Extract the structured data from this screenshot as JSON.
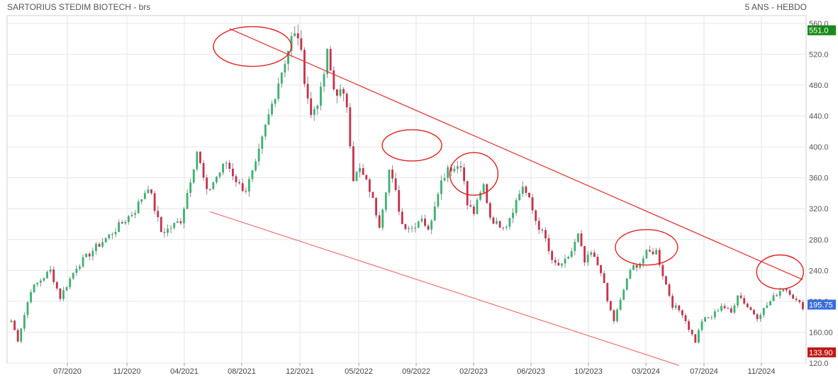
{
  "header": {
    "title": "SARTORIUS STEDIM BIOTECH - brs",
    "period": "5 ANS - HEBDO"
  },
  "chart_data": {
    "type": "candlestick",
    "ylim": [
      120,
      570
    ],
    "y_ticks": [
      "120.0",
      "160.00",
      "200.0",
      "240.0",
      "280.0",
      "320.0",
      "360.0",
      "400.0",
      "440.0",
      "480.0",
      "520.0",
      "560.0"
    ],
    "y_tick_values": [
      120,
      160,
      200,
      240,
      280,
      320,
      360,
      400,
      440,
      480,
      520,
      560
    ],
    "x_ticks": [
      "07/2020",
      "11/2020",
      "04/2021",
      "08/2021",
      "12/2021",
      "05/2022",
      "09/2022",
      "02/2023",
      "06/2023",
      "10/2023",
      "03/2024",
      "07/2024",
      "11/2024"
    ],
    "price_tags": [
      {
        "label": "551.0",
        "value": 551,
        "color": "#1a8a1a"
      },
      {
        "label": "195.75",
        "value": 195.75,
        "color": "#3b6fd8"
      },
      {
        "label": "133.90",
        "value": 133.9,
        "color": "#c01818"
      }
    ],
    "up_color": "#3cb371",
    "down_color": "#c8324e",
    "anchors": [
      [
        0,
        175
      ],
      [
        2,
        150
      ],
      [
        6,
        215
      ],
      [
        12,
        240
      ],
      [
        15,
        205
      ],
      [
        20,
        245
      ],
      [
        26,
        270
      ],
      [
        30,
        285
      ],
      [
        38,
        318
      ],
      [
        42,
        350
      ],
      [
        46,
        290
      ],
      [
        48,
        293
      ],
      [
        52,
        305
      ],
      [
        57,
        395
      ],
      [
        60,
        340
      ],
      [
        62,
        355
      ],
      [
        66,
        380
      ],
      [
        70,
        350
      ],
      [
        72,
        345
      ],
      [
        75,
        375
      ],
      [
        78,
        425
      ],
      [
        82,
        485
      ],
      [
        86,
        540
      ],
      [
        88,
        545
      ],
      [
        90,
        490
      ],
      [
        92,
        440
      ],
      [
        95,
        470
      ],
      [
        97,
        520
      ],
      [
        99,
        475
      ],
      [
        101,
        470
      ],
      [
        103,
        455
      ],
      [
        105,
        360
      ],
      [
        107,
        370
      ],
      [
        110,
        345
      ],
      [
        113,
        300
      ],
      [
        116,
        370
      ],
      [
        118,
        340
      ],
      [
        120,
        300
      ],
      [
        123,
        295
      ],
      [
        126,
        310
      ],
      [
        128,
        290
      ],
      [
        131,
        345
      ],
      [
        134,
        375
      ],
      [
        136,
        372
      ],
      [
        138,
        380
      ],
      [
        140,
        325
      ],
      [
        142,
        315
      ],
      [
        145,
        350
      ],
      [
        147,
        310
      ],
      [
        149,
        300
      ],
      [
        152,
        300
      ],
      [
        155,
        330
      ],
      [
        157,
        350
      ],
      [
        159,
        330
      ],
      [
        161,
        305
      ],
      [
        164,
        280
      ],
      [
        166,
        250
      ],
      [
        169,
        245
      ],
      [
        172,
        265
      ],
      [
        174,
        285
      ],
      [
        176,
        250
      ],
      [
        178,
        262
      ],
      [
        181,
        240
      ],
      [
        183,
        200
      ],
      [
        185,
        175
      ],
      [
        187,
        200
      ],
      [
        189,
        230
      ],
      [
        191,
        245
      ],
      [
        193,
        250
      ],
      [
        195,
        262
      ],
      [
        198,
        265
      ],
      [
        200,
        235
      ],
      [
        203,
        195
      ],
      [
        206,
        185
      ],
      [
        208,
        165
      ],
      [
        210,
        148
      ],
      [
        212,
        175
      ],
      [
        215,
        180
      ],
      [
        218,
        195
      ],
      [
        221,
        185
      ],
      [
        223,
        210
      ],
      [
        226,
        193
      ],
      [
        229,
        180
      ],
      [
        232,
        195
      ],
      [
        235,
        210
      ],
      [
        237,
        218
      ],
      [
        239,
        212
      ],
      [
        241,
        200
      ],
      [
        243,
        193
      ]
    ],
    "annotations": {
      "resistance_line": [
        [
          67,
          553
        ],
        [
          243,
          228
        ]
      ],
      "support_line": [
        [
          61,
          316
        ],
        [
          205,
          117
        ]
      ],
      "circles": [
        [
          74,
          530
        ],
        [
          123,
          402
        ],
        [
          142,
          365
        ],
        [
          195,
          270
        ],
        [
          236,
          238
        ]
      ]
    },
    "grid": true,
    "legend": "none"
  }
}
